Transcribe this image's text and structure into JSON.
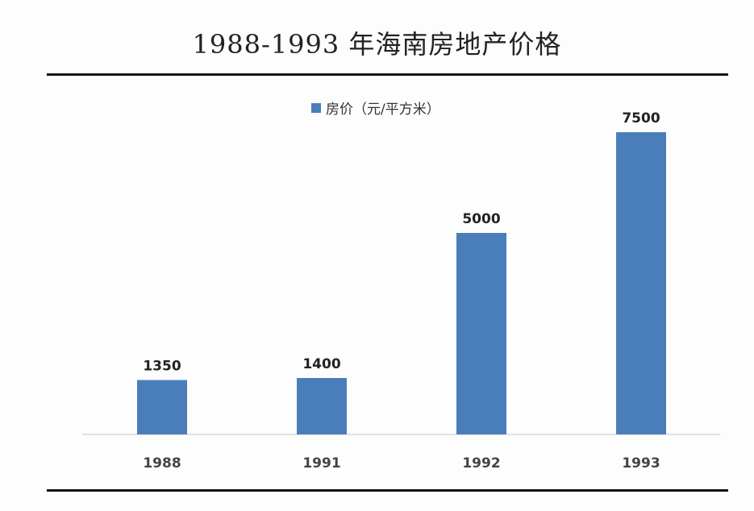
{
  "chart_data": {
    "type": "bar",
    "title": "1988-1993 年海南房地产价格",
    "categories": [
      "1988",
      "1991",
      "1992",
      "1993"
    ],
    "series": [
      {
        "name": "房价（元/平方米）",
        "values": [
          1350,
          1400,
          5000,
          7500
        ]
      }
    ],
    "data_labels": [
      "1350",
      "1400",
      "5000",
      "7500"
    ],
    "ylim": [
      0,
      8000
    ],
    "grid": false,
    "legend": "top-center",
    "colors": {
      "bar": "#4a7ebb"
    }
  }
}
